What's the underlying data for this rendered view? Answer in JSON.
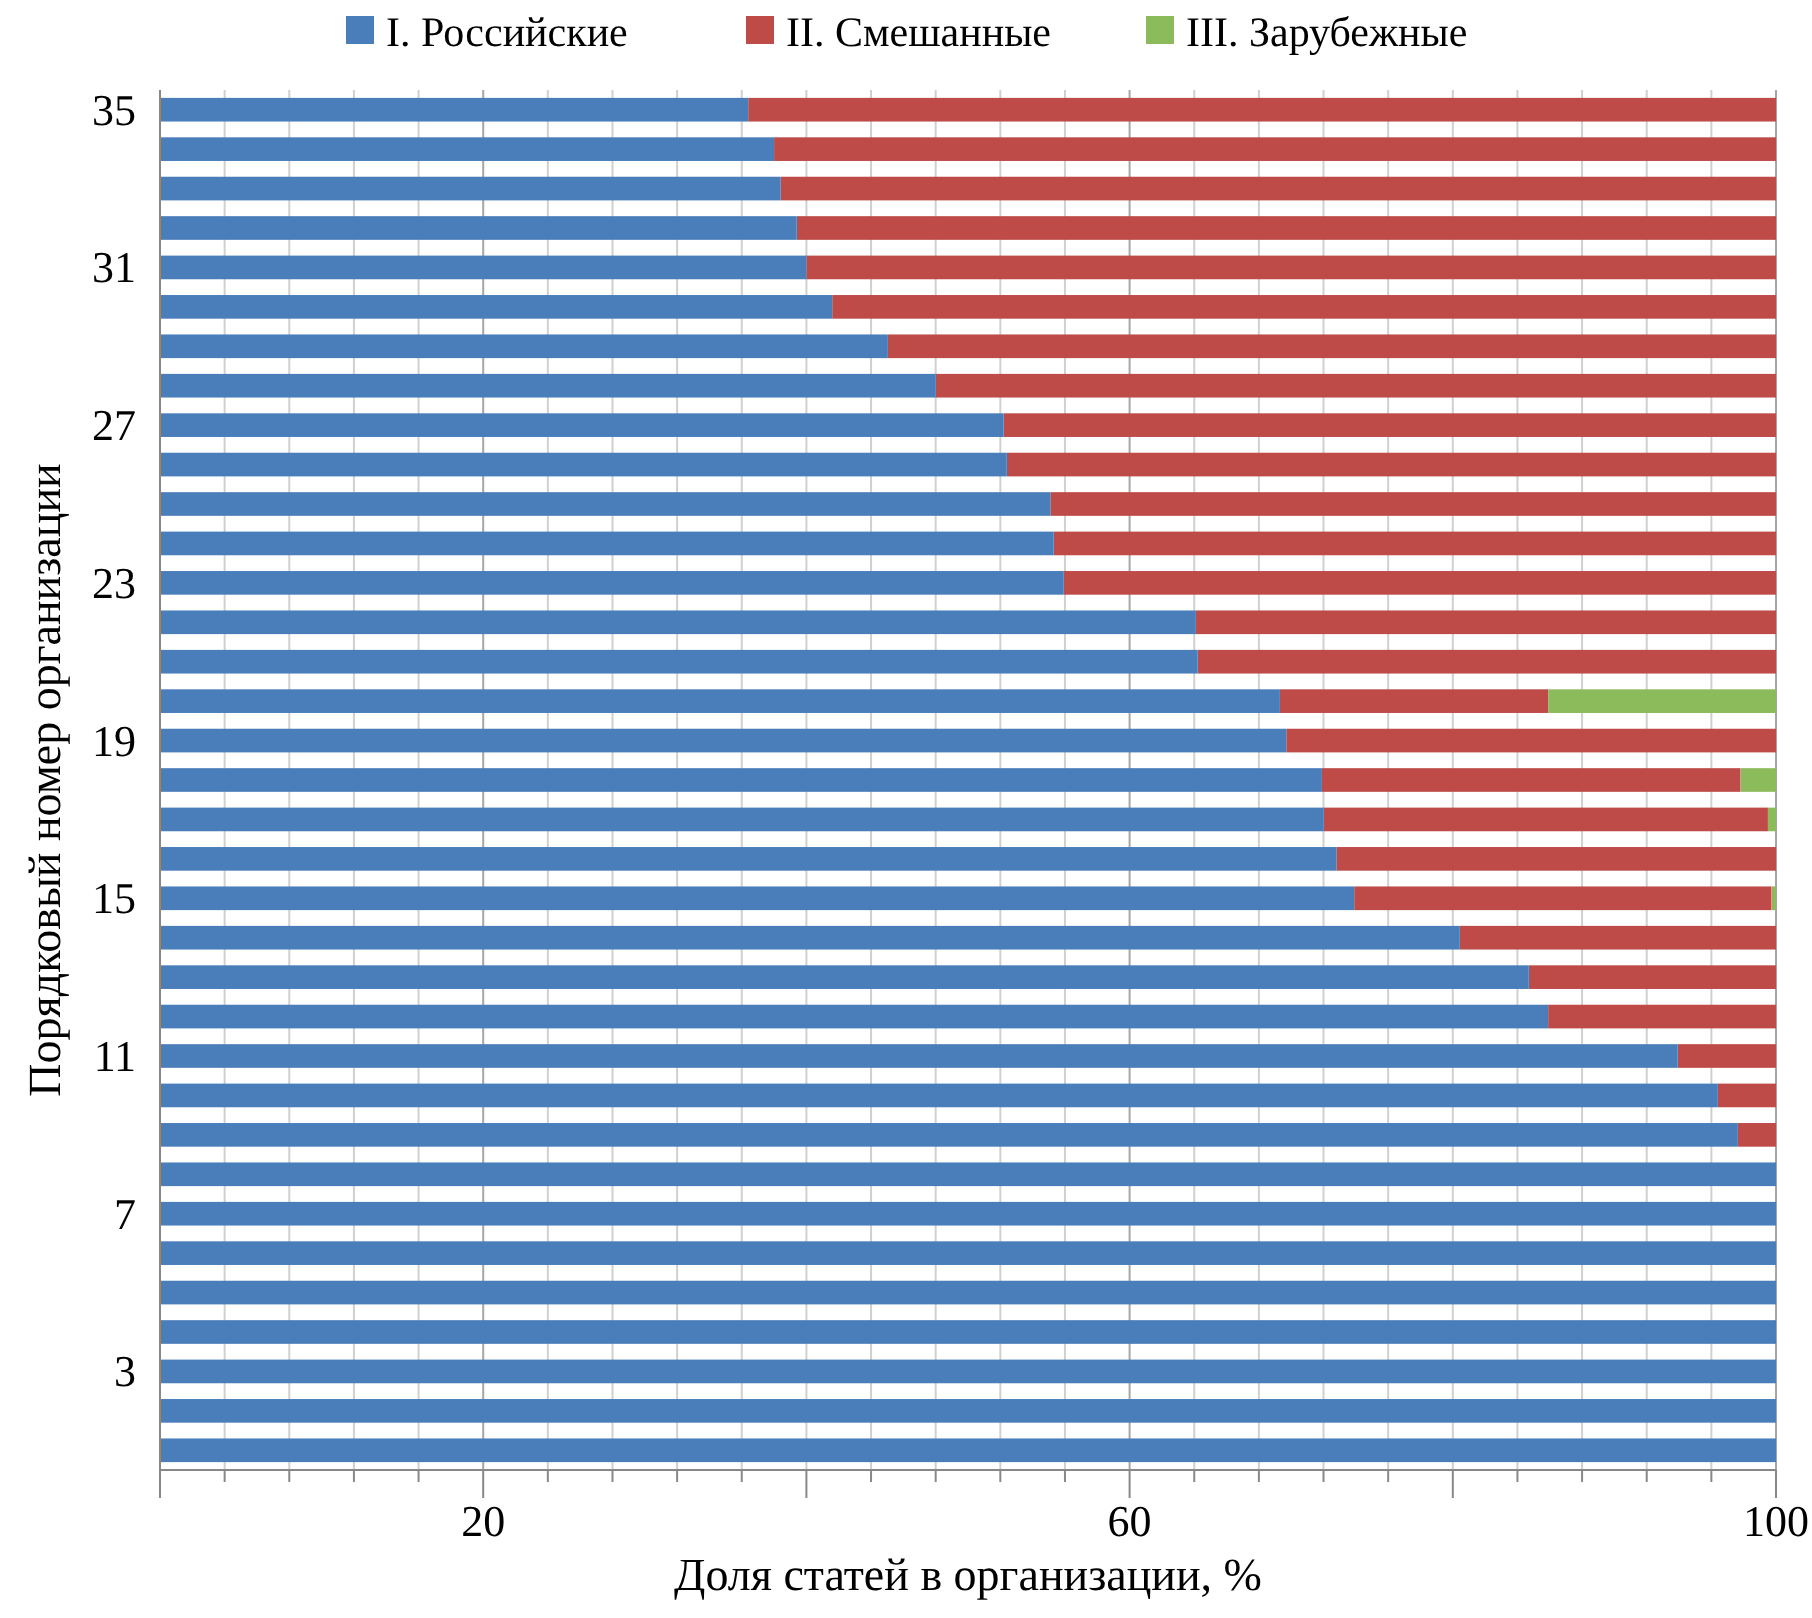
{
  "chart_data": {
    "type": "bar",
    "orientation": "horizontal",
    "stacked": true,
    "xlabel": "Доля статей в организации, %",
    "ylabel": "Порядковый номер организации",
    "categories": [
      "35",
      null,
      null,
      null,
      "31",
      null,
      null,
      null,
      "27",
      null,
      null,
      null,
      "23",
      null,
      null,
      null,
      "19",
      null,
      null,
      null,
      "15",
      null,
      null,
      null,
      "11",
      null,
      null,
      null,
      "7",
      null,
      null,
      null,
      "3",
      null,
      null
    ],
    "series": [
      {
        "name": "I. Российские",
        "color": "#4a7ebb",
        "values": [
          36.4,
          38.0,
          38.4,
          39.4,
          40.0,
          41.6,
          45.0,
          48.0,
          52.2,
          52.4,
          55.1,
          55.3,
          55.9,
          64.1,
          64.2,
          69.3,
          69.7,
          71.9,
          72.0,
          72.8,
          73.9,
          80.4,
          84.7,
          85.9,
          93.9,
          96.4,
          97.6,
          100,
          100,
          100,
          100,
          100,
          100,
          100,
          100
        ]
      },
      {
        "name": "II. Смешанные",
        "color": "#be4b48",
        "values": [
          63.6,
          62.0,
          61.6,
          60.6,
          60.0,
          58.4,
          55.0,
          52.0,
          47.8,
          47.6,
          44.9,
          44.7,
          44.1,
          35.9,
          35.8,
          16.6,
          30.3,
          25.9,
          27.5,
          27.2,
          25.8,
          19.6,
          15.3,
          14.1,
          6.1,
          3.6,
          2.4,
          null,
          null,
          null,
          null,
          null,
          null,
          null,
          null
        ]
      },
      {
        "name": "III. Зарубежные",
        "color": "#8cbb5c",
        "values": [
          null,
          null,
          null,
          null,
          null,
          null,
          null,
          null,
          null,
          null,
          null,
          null,
          null,
          null,
          null,
          14.1,
          null,
          2.2,
          0.5,
          null,
          0.3,
          null,
          null,
          null,
          null,
          null,
          null,
          null,
          null,
          null,
          null,
          null,
          null,
          null,
          null
        ]
      }
    ],
    "xlim": [
      0,
      100
    ],
    "xticks": [
      {
        "value": 0,
        "label": null
      },
      {
        "value": 4,
        "label": null
      },
      {
        "value": 8,
        "label": null
      },
      {
        "value": 12,
        "label": null
      },
      {
        "value": 16,
        "label": null
      },
      20,
      {
        "value": 24,
        "label": null
      },
      {
        "value": 28,
        "label": null
      },
      {
        "value": 32,
        "label": null
      },
      {
        "value": 36,
        "label": null
      },
      {
        "value": 40,
        "label": null
      },
      {
        "value": 44,
        "label": null
      },
      {
        "value": 48,
        "label": null
      },
      {
        "value": 52,
        "label": null
      },
      {
        "value": 56,
        "label": null
      },
      60,
      {
        "value": 64,
        "label": null
      },
      {
        "value": 68,
        "label": null
      },
      {
        "value": 72,
        "label": null
      },
      {
        "value": 76,
        "label": null
      },
      {
        "value": 80,
        "label": null
      },
      {
        "value": 84,
        "label": null
      },
      {
        "value": 88,
        "label": null
      },
      {
        "value": 92,
        "label": null
      },
      {
        "value": 96,
        "label": null
      },
      100
    ],
    "grid": "x",
    "legend": "top"
  }
}
